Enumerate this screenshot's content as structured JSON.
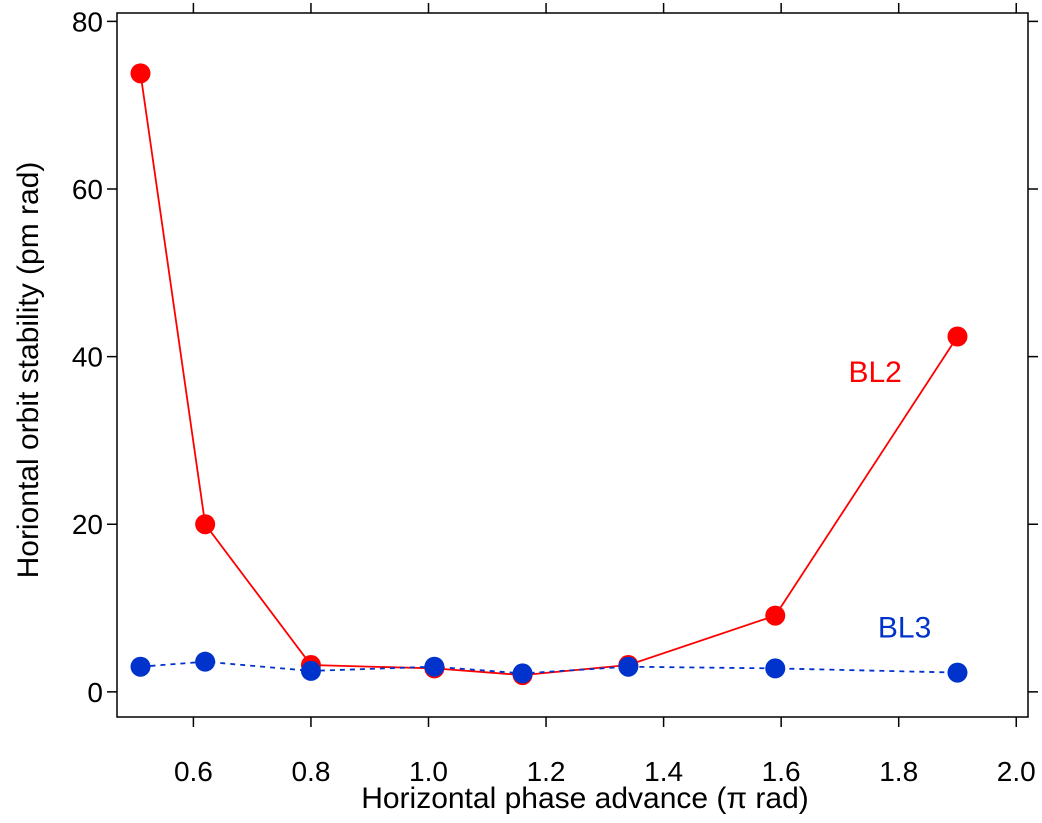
{
  "chart_data": {
    "type": "line",
    "title": "",
    "xlabel": "Horizontal phase advance (π rad)",
    "ylabel": "Horiontal orbit stability (pm rad)",
    "xlim": [
      0.47,
      2.02
    ],
    "ylim": [
      -3,
      81
    ],
    "x_ticks": [
      0.6,
      0.8,
      1.0,
      1.2,
      1.4,
      1.6,
      1.8,
      2.0
    ],
    "x_tick_labels": [
      "0.6",
      "0.8",
      "1.0",
      "1.2",
      "1.4",
      "1.6",
      "1.8",
      "2.0"
    ],
    "y_ticks": [
      0,
      20,
      40,
      60,
      80
    ],
    "y_tick_labels": [
      "0",
      "20",
      "40",
      "60",
      "80"
    ],
    "grid": false,
    "series": [
      {
        "name": "BL2",
        "color": "#ff0000",
        "line_style": "solid",
        "x": [
          0.51,
          0.62,
          0.8,
          1.01,
          1.16,
          1.34,
          1.59,
          1.9
        ],
        "y": [
          73.8,
          20.0,
          3.2,
          2.8,
          2.0,
          3.2,
          9.1,
          42.4
        ]
      },
      {
        "name": "BL3",
        "color": "#0033cc",
        "line_style": "dashed",
        "x": [
          0.51,
          0.62,
          0.8,
          1.01,
          1.16,
          1.34,
          1.59,
          1.9
        ],
        "y": [
          3.0,
          3.6,
          2.5,
          3.0,
          2.2,
          3.0,
          2.8,
          2.3
        ]
      }
    ],
    "annotations": [
      {
        "text": "BL2",
        "series": "BL2",
        "x": 1.76,
        "y": 37,
        "color": "#ff0000"
      },
      {
        "text": "BL3",
        "series": "BL3",
        "x": 1.81,
        "y": 6.5,
        "color": "#0033cc"
      }
    ]
  }
}
